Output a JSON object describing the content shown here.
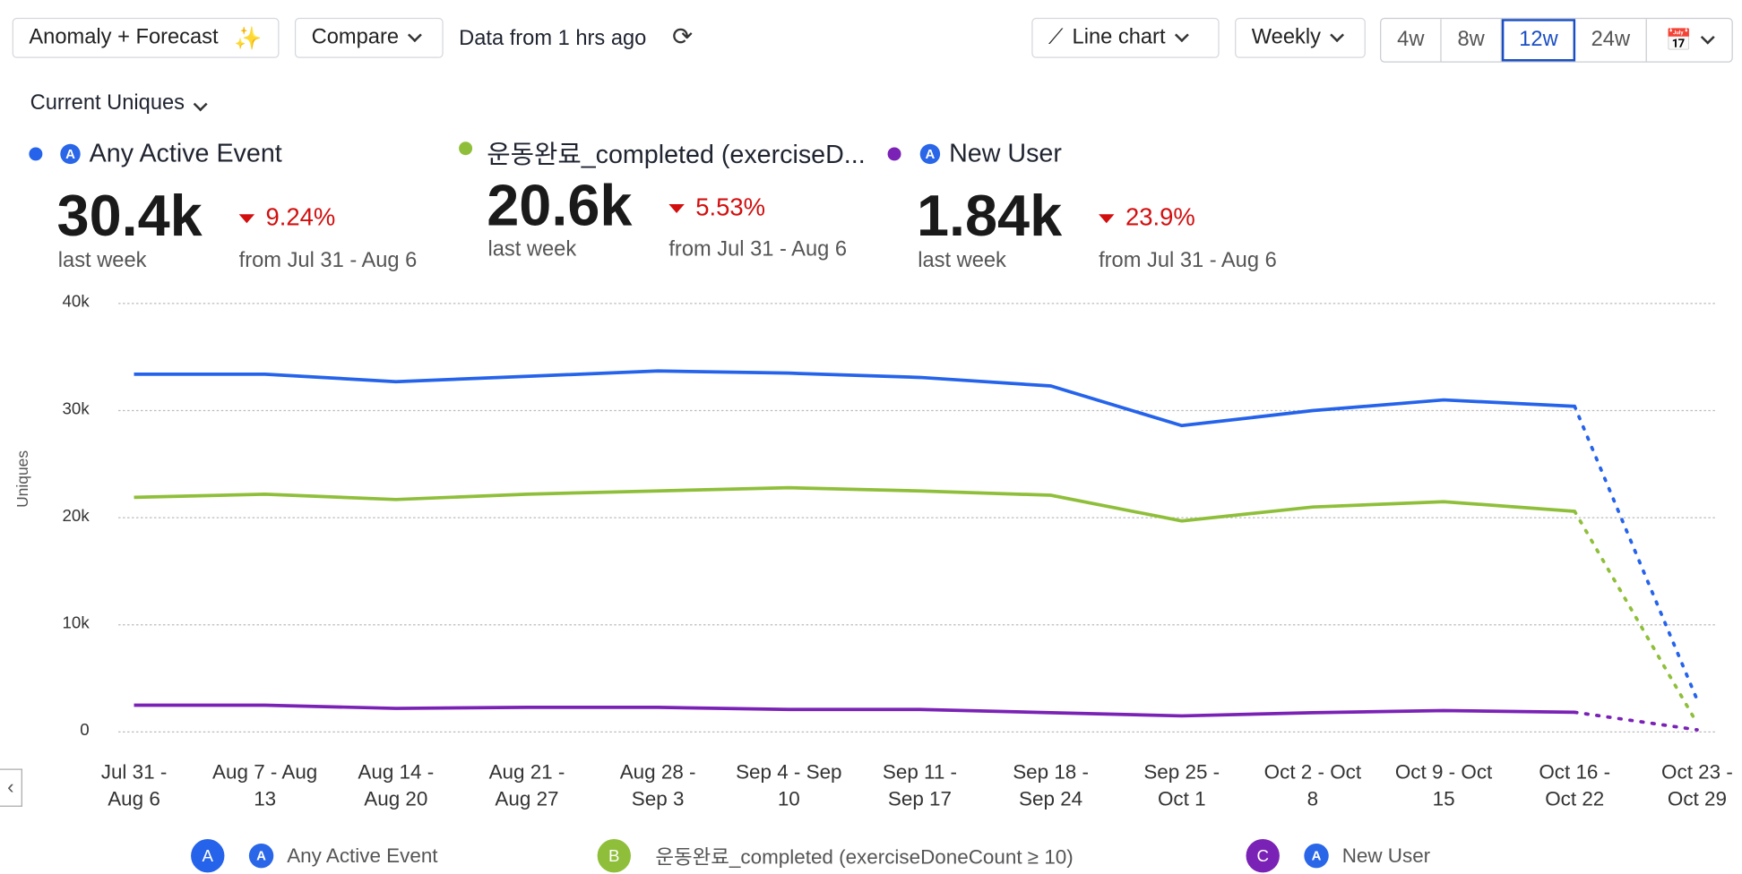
{
  "toolbar": {
    "anomaly_label": "Anomaly + Forecast",
    "compare_label": "Compare",
    "data_age": "Data from 1 hrs ago",
    "chart_type": "Line chart",
    "interval": "Weekly",
    "ranges": [
      "4w",
      "8w",
      "12w",
      "24w"
    ],
    "active_range": "12w"
  },
  "metric_selector": "Current Uniques",
  "summary": [
    {
      "name": "Any Active Event",
      "value": "30.4k",
      "period": "last week",
      "change": "9.24%",
      "compare": "from Jul 31 - Aug 6",
      "color": "#2563eb"
    },
    {
      "name": "운동완료_completed (exerciseD...",
      "value": "20.6k",
      "period": "last week",
      "change": "5.53%",
      "compare": "from Jul 31 - Aug 6",
      "color": "#8fbf3a"
    },
    {
      "name": "New User",
      "value": "1.84k",
      "period": "last week",
      "change": "23.9%",
      "compare": "from Jul 31 - Aug 6",
      "color": "#7a22b5"
    }
  ],
  "chart_data": {
    "type": "line",
    "ylabel": "Uniques",
    "ylim": [
      0,
      40000
    ],
    "yticks": [
      "0",
      "10k",
      "20k",
      "30k",
      "40k"
    ],
    "categories": [
      [
        "Jul 31 -",
        "Aug 6"
      ],
      [
        "Aug 7 - Aug",
        "13"
      ],
      [
        "Aug 14 -",
        "Aug 20"
      ],
      [
        "Aug 21 -",
        "Aug 27"
      ],
      [
        "Aug 28 -",
        "Sep 3"
      ],
      [
        "Sep 4 - Sep",
        "10"
      ],
      [
        "Sep 11 -",
        "Sep 17"
      ],
      [
        "Sep 18 -",
        "Sep 24"
      ],
      [
        "Sep 25 -",
        "Oct 1"
      ],
      [
        "Oct 2 - Oct",
        "8"
      ],
      [
        "Oct 9 - Oct",
        "15"
      ],
      [
        "Oct 16 -",
        "Oct 22"
      ],
      [
        "Oct 23 -",
        "Oct 29"
      ]
    ],
    "grid": true,
    "forecast_from_index": 11,
    "series": [
      {
        "name": "Any Active Event",
        "badge": "A",
        "color": "#2563eb",
        "values": [
          33400,
          33400,
          32700,
          33200,
          33700,
          33500,
          33100,
          32300,
          28600,
          30000,
          31000,
          30400,
          3000
        ]
      },
      {
        "name": "운동완료_completed (exerciseDoneCount ≥ 10)",
        "badge": "B",
        "color": "#8fbf3a",
        "values": [
          21900,
          22200,
          21700,
          22200,
          22500,
          22800,
          22500,
          22100,
          19700,
          21000,
          21500,
          20600,
          800
        ]
      },
      {
        "name": "New User",
        "badge": "C",
        "color": "#7a22b5",
        "values": [
          2500,
          2500,
          2200,
          2300,
          2300,
          2100,
          2100,
          1800,
          1500,
          1800,
          2000,
          1840,
          200
        ]
      }
    ]
  }
}
